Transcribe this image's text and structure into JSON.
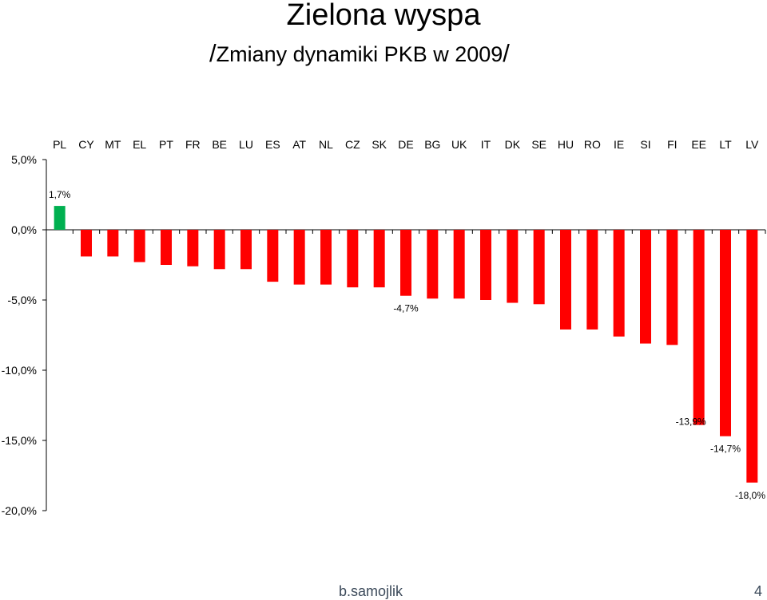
{
  "slide": {
    "title": "Zielona wyspa",
    "subtitle_slash_open": "/",
    "subtitle": "Zmiany dynamiki PKB w 2009",
    "subtitle_slash_close": "/",
    "footer_author": "b.samojlik",
    "page_number": "4"
  },
  "chart_data": {
    "type": "bar",
    "categories": [
      "PL",
      "CY",
      "MT",
      "EL",
      "PT",
      "FR",
      "BE",
      "LU",
      "ES",
      "AT",
      "NL",
      "CZ",
      "SK",
      "DE",
      "BG",
      "UK",
      "IT",
      "DK",
      "SE",
      "HU",
      "RO",
      "IE",
      "SI",
      "FI",
      "EE",
      "LT",
      "LV"
    ],
    "values": [
      1.7,
      -1.9,
      -1.9,
      -2.3,
      -2.5,
      -2.6,
      -2.8,
      -2.8,
      -3.7,
      -3.9,
      -3.9,
      -4.1,
      -4.1,
      -4.7,
      -4.9,
      -4.9,
      -5.0,
      -5.2,
      -5.3,
      -7.1,
      -7.1,
      -7.6,
      -8.1,
      -8.2,
      -13.9,
      -14.7,
      -18.0
    ],
    "data_labels": [
      {
        "index": 0,
        "text": "1,7%"
      },
      {
        "index": 13,
        "text": "-4,7%"
      },
      {
        "index": 24,
        "text": "-13,9%"
      },
      {
        "index": 25,
        "text": "-14,7%"
      },
      {
        "index": 26,
        "text": "-18,0%"
      }
    ],
    "y_ticks": [
      {
        "value": 5,
        "label": "5,0%"
      },
      {
        "value": 0,
        "label": "0,0%"
      },
      {
        "value": -5,
        "label": "-5,0%"
      },
      {
        "value": -10,
        "label": "-10,0%"
      },
      {
        "value": -15,
        "label": "-15,0%"
      },
      {
        "value": -20,
        "label": "-20,0%"
      }
    ],
    "ylim": [
      -20,
      5
    ],
    "category_labels_position": "top",
    "grid": false,
    "colors": {
      "positive": "#00b050",
      "negative": "#ff0000",
      "axis": "#000000"
    }
  }
}
